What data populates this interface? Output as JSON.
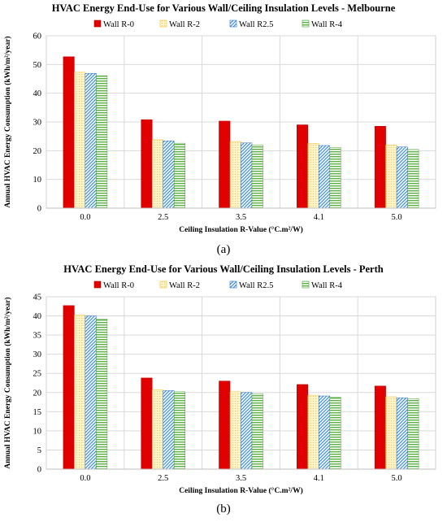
{
  "chart_data": [
    {
      "type": "bar",
      "title": "HVAC Energy End-Use for Various Wall/Ceiling Insulation Levels - Melbourne",
      "xlabel": "Ceiling Insulation  R-Value (°C.m²/W)",
      "ylabel": "Annual HVAC Energy Consumption (kWh/m²/year)",
      "ylim": [
        0,
        60
      ],
      "yticks": [
        0,
        10,
        20,
        30,
        40,
        50,
        60
      ],
      "grid": true,
      "legend": "top",
      "categories": [
        "0.0",
        "2.5",
        "3.5",
        "4.1",
        "5.0"
      ],
      "series": [
        {
          "name": "Wall R-0",
          "values": [
            52.7,
            30.8,
            30.3,
            29.0,
            28.5
          ]
        },
        {
          "name": "Wall R-2",
          "values": [
            47.3,
            23.8,
            23.2,
            22.5,
            22.0
          ]
        },
        {
          "name": "Wall R2.5",
          "values": [
            46.9,
            23.4,
            22.7,
            21.8,
            21.3
          ]
        },
        {
          "name": "Wall R-4",
          "values": [
            46.1,
            22.6,
            21.9,
            21.1,
            20.4
          ]
        }
      ],
      "caption": "(a)"
    },
    {
      "type": "bar",
      "title": "HVAC Energy End-Use for Various Wall/Ceiling Insulation Levels - Perth",
      "xlabel": "Ceiling Insulation  R-Value (°C.m²/W)",
      "ylabel": "Annual HVAC Energy Consumption (kWh/m²/year)",
      "ylim": [
        0,
        45
      ],
      "yticks": [
        0,
        5,
        10,
        15,
        20,
        25,
        30,
        35,
        40,
        45
      ],
      "grid": true,
      "legend": "top",
      "categories": [
        "0.0",
        "2.5",
        "3.5",
        "4.1",
        "5.0"
      ],
      "series": [
        {
          "name": "Wall R-0",
          "values": [
            42.7,
            23.8,
            23.0,
            22.1,
            21.7
          ]
        },
        {
          "name": "Wall R-2",
          "values": [
            40.2,
            20.7,
            20.2,
            19.3,
            18.9
          ]
        },
        {
          "name": "Wall R2.5",
          "values": [
            40.0,
            20.5,
            20.0,
            19.1,
            18.6
          ]
        },
        {
          "name": "Wall R-4",
          "values": [
            39.2,
            20.2,
            19.6,
            18.8,
            18.4
          ]
        }
      ],
      "caption": "(b)"
    }
  ],
  "series_colors": [
    "#e00000",
    "#fff2c4",
    "#3d8fd8",
    "#5cb043"
  ],
  "series_edge_colors": [
    "#b00000",
    "#f0c030",
    "#2a70c0",
    "#40a030"
  ],
  "series_patterns": [
    "solid",
    "dots",
    "diagonal-hatch",
    "horizontal-lines"
  ]
}
